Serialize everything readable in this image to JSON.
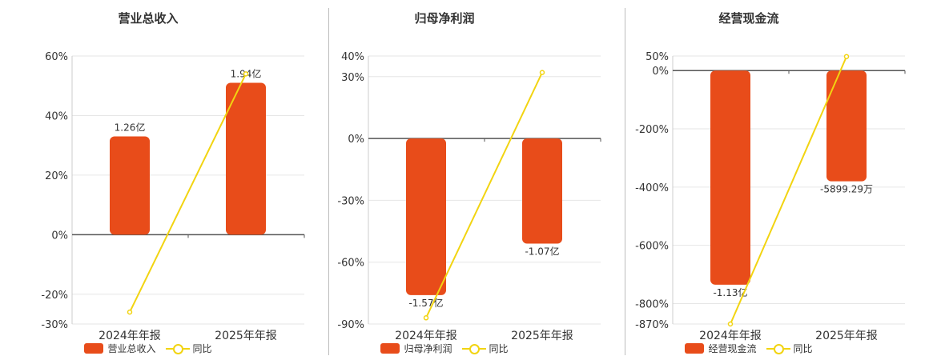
{
  "chart_data": [
    {
      "type": "bar",
      "title": "营业总收入",
      "categories": [
        "2024年年报",
        "2025年年报"
      ],
      "series": [
        {
          "name": "营业总收入",
          "kind": "bar",
          "values": [
            33,
            51
          ],
          "labels": [
            "1.26亿",
            "1.94亿"
          ]
        },
        {
          "name": "同比",
          "kind": "line",
          "values": [
            -26,
            54
          ]
        }
      ],
      "yticks": [
        60,
        40,
        20,
        0,
        -20,
        -30
      ],
      "ylim": [
        -30,
        60
      ],
      "y_unit": "%",
      "legend": "bottom-center",
      "grid": true
    },
    {
      "type": "bar",
      "title": "归母净利润",
      "categories": [
        "2024年年报",
        "2025年年报"
      ],
      "series": [
        {
          "name": "归母净利润",
          "kind": "bar",
          "values": [
            -76,
            -51
          ],
          "labels": [
            "-1.57亿",
            "-1.07亿"
          ]
        },
        {
          "name": "同比",
          "kind": "line",
          "values": [
            -87,
            32
          ]
        }
      ],
      "yticks": [
        40,
        30,
        0,
        -30,
        -60,
        -90
      ],
      "ylim": [
        -90,
        40
      ],
      "y_unit": "%",
      "legend": "bottom-center",
      "grid": true
    },
    {
      "type": "bar",
      "title": "经营现金流",
      "categories": [
        "2024年年报",
        "2025年年报"
      ],
      "series": [
        {
          "name": "经营现金流",
          "kind": "bar",
          "values": [
            -735,
            -380
          ],
          "labels": [
            "-1.13亿",
            "-5899.29万"
          ]
        },
        {
          "name": "同比",
          "kind": "line",
          "values": [
            -870,
            48
          ]
        }
      ],
      "yticks": [
        50,
        0,
        -200,
        -400,
        -600,
        -800,
        -870
      ],
      "ylim": [
        -870,
        50
      ],
      "y_unit": "%",
      "legend": "bottom-center",
      "grid": true
    }
  ],
  "colors": {
    "bar": "#e84c1a",
    "line": "#f2d411",
    "grid": "#e6e6e6",
    "axis": "#555555",
    "divider": "#bdbdbd"
  }
}
